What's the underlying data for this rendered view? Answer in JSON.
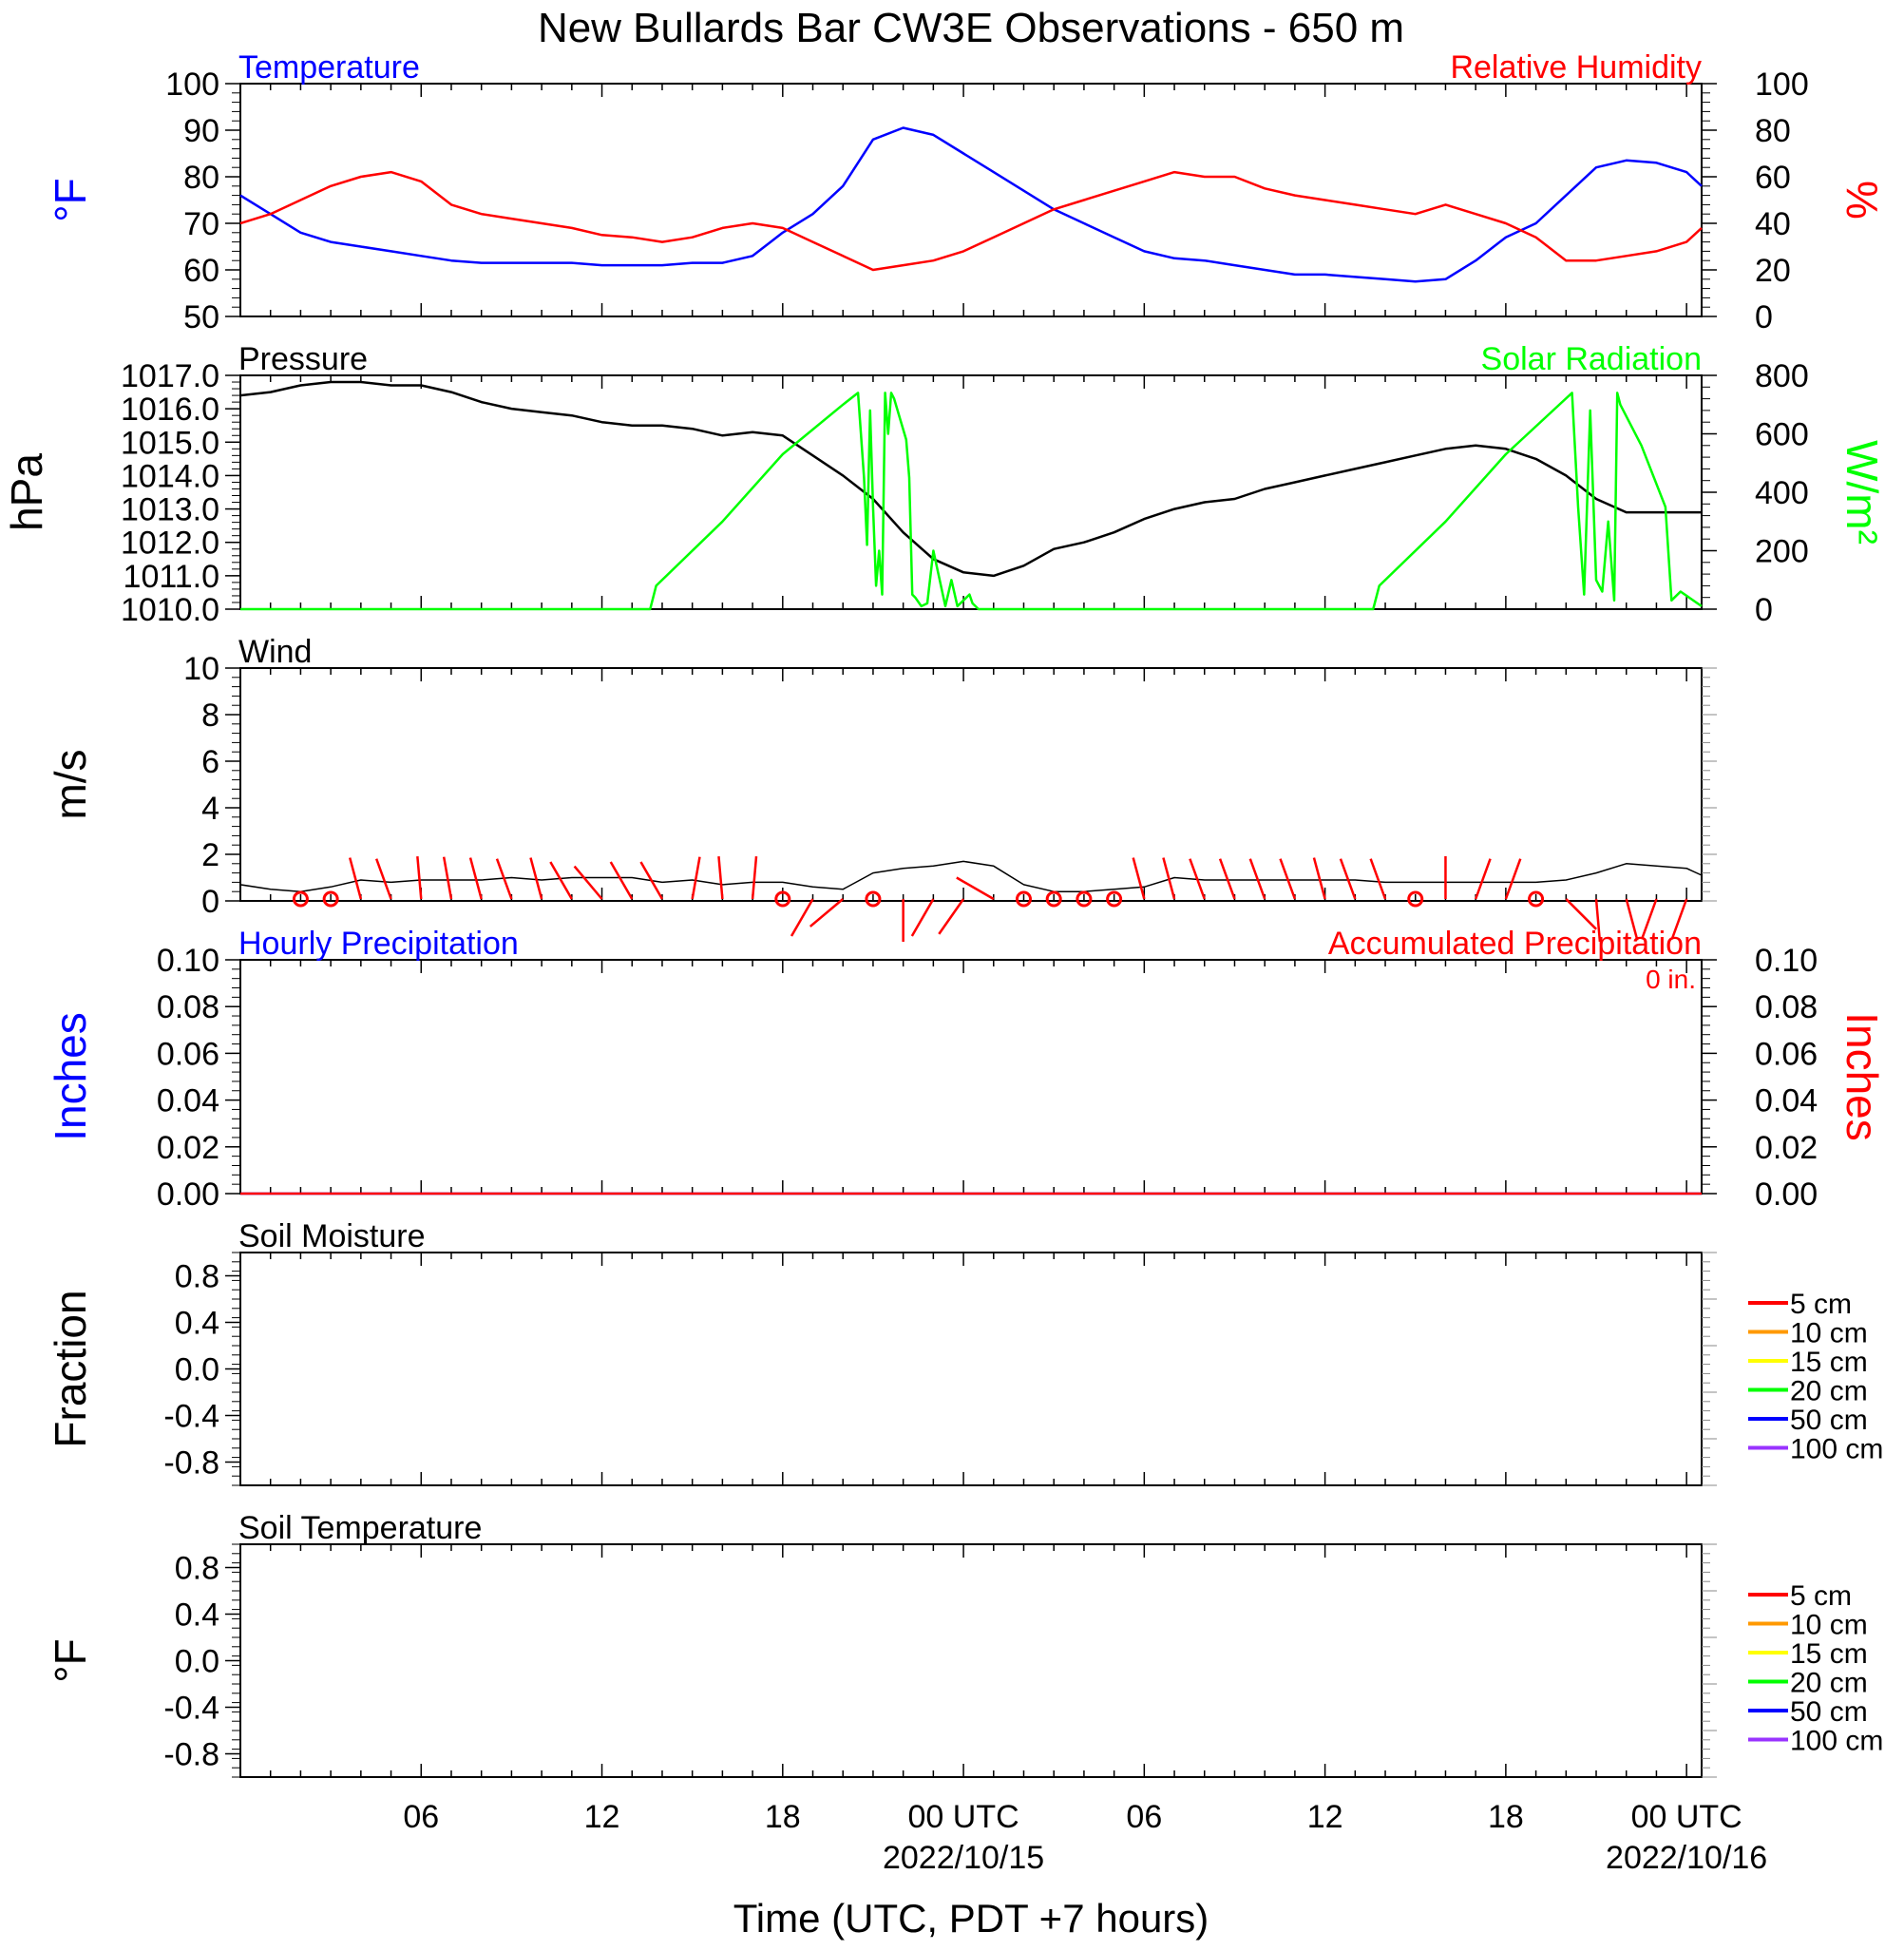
{
  "title": "New Bullards Bar CW3E Observations - 650 m",
  "xlabel": "Time (UTC, PDT +7 hours)",
  "x_axis": {
    "range_hours": [
      -24,
      24.5
    ],
    "ticks": [
      {
        "hour": -18,
        "label": "06",
        "date": ""
      },
      {
        "hour": -12,
        "label": "12",
        "date": ""
      },
      {
        "hour": -6,
        "label": "18",
        "date": ""
      },
      {
        "hour": 0,
        "label": "00 UTC",
        "date": "2022/10/15"
      },
      {
        "hour": 6,
        "label": "06",
        "date": ""
      },
      {
        "hour": 12,
        "label": "12",
        "date": ""
      },
      {
        "hour": 18,
        "label": "18",
        "date": ""
      },
      {
        "hour": 24,
        "label": "00 UTC",
        "date": "2022/10/16"
      }
    ]
  },
  "colors": {
    "temperature": "#0000ff",
    "humidity": "#ff0000",
    "pressure": "#000000",
    "solar": "#00ff00",
    "wind": "#000000",
    "barb": "#ff0000",
    "precip_hourly": "#0000ff",
    "precip_accum": "#ff0000"
  },
  "chart_data": [
    {
      "type": "line",
      "panel": "temperature-humidity",
      "left_title": "Temperature",
      "right_title": "Relative Humidity",
      "ylabel_left": "°F",
      "ylabel_right": "%",
      "ylim_left": [
        50,
        100
      ],
      "ylim_right": [
        0,
        100
      ],
      "yticks_left": [
        "50",
        "60",
        "70",
        "80",
        "90",
        "100"
      ],
      "yticks_right": [
        "0",
        "20",
        "40",
        "60",
        "80",
        "100"
      ],
      "series": [
        {
          "name": "Temperature",
          "axis": "left",
          "x": [
            -24,
            -23,
            -22,
            -21,
            -20,
            -19,
            -18,
            -17,
            -16,
            -15,
            -14,
            -13,
            -12,
            -11,
            -10,
            -9,
            -8,
            -7,
            -6,
            -5,
            -4,
            -3,
            -2,
            -1,
            0,
            1,
            2,
            3,
            4,
            5,
            6,
            7,
            8,
            9,
            10,
            11,
            12,
            13,
            14,
            15,
            16,
            17,
            18,
            19,
            20,
            21,
            22,
            23,
            24,
            24.5
          ],
          "y": [
            76,
            72,
            68,
            66,
            65,
            64,
            63,
            62,
            61.5,
            61.5,
            61.5,
            61.5,
            61,
            61,
            61,
            61.5,
            61.5,
            63,
            68,
            72,
            78,
            88,
            90.5,
            89,
            85,
            81,
            77,
            73,
            70,
            67,
            64,
            62.5,
            62,
            61,
            60,
            59,
            59,
            58.5,
            58,
            57.5,
            58,
            62,
            67,
            70,
            76,
            82,
            83.5,
            83,
            81,
            78
          ]
        },
        {
          "name": "Relative Humidity",
          "axis": "right",
          "x": [
            -24,
            -23,
            -22,
            -21,
            -20,
            -19,
            -18,
            -17,
            -16,
            -15,
            -14,
            -13,
            -12,
            -11,
            -10,
            -9,
            -8,
            -7,
            -6,
            -5,
            -4,
            -3,
            -2,
            -1,
            0,
            1,
            2,
            3,
            4,
            5,
            6,
            7,
            8,
            9,
            10,
            11,
            12,
            13,
            14,
            15,
            16,
            17,
            18,
            19,
            20,
            21,
            22,
            23,
            24,
            24.5
          ],
          "y": [
            40,
            44,
            50,
            56,
            60,
            62,
            58,
            48,
            44,
            42,
            40,
            38,
            35,
            34,
            32,
            34,
            38,
            40,
            38,
            32,
            26,
            20,
            22,
            24,
            28,
            34,
            40,
            46,
            50,
            54,
            58,
            62,
            60,
            60,
            55,
            52,
            50,
            48,
            46,
            44,
            48,
            44,
            40,
            34,
            24,
            24,
            26,
            28,
            32,
            38
          ]
        }
      ]
    },
    {
      "type": "line",
      "panel": "pressure-solar",
      "left_title": "Pressure",
      "right_title": "Solar Radiation",
      "ylabel_left": "hPa",
      "ylabel_right": "W/m²",
      "ylim_left": [
        1010,
        1017
      ],
      "ylim_right": [
        0,
        800
      ],
      "yticks_left": [
        "1010.0",
        "1011.0",
        "1012.0",
        "1013.0",
        "1014.0",
        "1015.0",
        "1016.0",
        "1017.0"
      ],
      "yticks_right": [
        "0",
        "200",
        "400",
        "600",
        "800"
      ],
      "series": [
        {
          "name": "Pressure",
          "axis": "left",
          "x": [
            -24,
            -23,
            -22,
            -21,
            -20,
            -19,
            -18,
            -17,
            -16,
            -15,
            -14,
            -13,
            -12,
            -11,
            -10,
            -9,
            -8,
            -7,
            -6,
            -5,
            -4,
            -3,
            -2,
            -1,
            0,
            1,
            2,
            3,
            4,
            5,
            6,
            7,
            8,
            9,
            10,
            11,
            12,
            13,
            14,
            15,
            16,
            17,
            18,
            19,
            20,
            21,
            22,
            23,
            24,
            24.5
          ],
          "y": [
            1016.4,
            1016.5,
            1016.7,
            1016.8,
            1016.8,
            1016.7,
            1016.7,
            1016.5,
            1016.2,
            1016.0,
            1015.9,
            1015.8,
            1015.6,
            1015.5,
            1015.5,
            1015.4,
            1015.2,
            1015.3,
            1015.2,
            1014.6,
            1014.0,
            1013.3,
            1012.3,
            1011.5,
            1011.1,
            1011.0,
            1011.3,
            1011.8,
            1012.0,
            1012.3,
            1012.7,
            1013.0,
            1013.2,
            1013.3,
            1013.6,
            1013.8,
            1014.0,
            1014.2,
            1014.4,
            1014.6,
            1014.8,
            1014.9,
            1014.8,
            1014.5,
            1014.0,
            1013.3,
            1012.9,
            1012.9,
            1012.9,
            1012.9
          ]
        },
        {
          "name": "Solar Radiation",
          "axis": "right",
          "x": [
            -24,
            -10.4,
            -10.2,
            -8,
            -6,
            -4,
            -3.5,
            -3.3,
            -3.2,
            -3.1,
            -3.0,
            -2.9,
            -2.8,
            -2.7,
            -2.6,
            -2.5,
            -2.4,
            -2.3,
            -1.9,
            -1.8,
            -1.7,
            -1.6,
            -1.4,
            -1.2,
            -1,
            -0.6,
            -0.4,
            -0.2,
            0.2,
            0.3,
            0.5,
            1.4,
            13.6,
            13.8,
            16,
            18,
            20.2,
            20.4,
            20.6,
            20.8,
            21,
            21.2,
            21.4,
            21.6,
            21.7,
            21.8,
            22.5,
            23.3,
            23.5,
            23.8,
            24.5
          ],
          "y": [
            0,
            0,
            80,
            300,
            530,
            700,
            740,
            450,
            220,
            680,
            350,
            80,
            200,
            50,
            740,
            600,
            740,
            720,
            580,
            450,
            50,
            40,
            10,
            20,
            200,
            10,
            100,
            10,
            50,
            20,
            0,
            0,
            0,
            80,
            300,
            530,
            740,
            350,
            50,
            680,
            100,
            60,
            300,
            30,
            740,
            700,
            560,
            350,
            30,
            60,
            10
          ]
        }
      ]
    },
    {
      "type": "line",
      "panel": "wind",
      "left_title": "Wind",
      "ylabel_left": "m/s",
      "ylim_left": [
        0,
        10
      ],
      "yticks_left": [
        "0",
        "2",
        "4",
        "6",
        "8",
        "10"
      ],
      "series": [
        {
          "name": "Wind",
          "axis": "left",
          "x": [
            -24,
            -23,
            -22,
            -21,
            -20,
            -19,
            -18,
            -17,
            -16,
            -15,
            -14,
            -13,
            -12,
            -11,
            -10,
            -9,
            -8,
            -7,
            -6,
            -5,
            -4,
            -3,
            -2,
            -1,
            0,
            1,
            2,
            3,
            4,
            5,
            6,
            7,
            8,
            9,
            10,
            11,
            12,
            13,
            14,
            15,
            16,
            17,
            18,
            19,
            20,
            21,
            22,
            23,
            24,
            24.5
          ],
          "y": [
            0.7,
            0.5,
            0.4,
            0.6,
            0.9,
            0.8,
            0.9,
            0.9,
            0.9,
            1.0,
            0.9,
            1.0,
            1.0,
            1.0,
            0.8,
            0.9,
            0.7,
            0.8,
            0.8,
            0.6,
            0.5,
            1.2,
            1.4,
            1.5,
            1.7,
            1.5,
            0.7,
            0.4,
            0.4,
            0.5,
            0.6,
            1.0,
            0.9,
            0.9,
            0.9,
            0.9,
            0.9,
            0.9,
            0.8,
            0.8,
            0.8,
            0.8,
            0.8,
            0.8,
            0.9,
            1.2,
            1.6,
            1.5,
            1.4,
            1.1
          ]
        }
      ]
    },
    {
      "type": "line",
      "panel": "precipitation",
      "left_title": "Hourly Precipitation",
      "right_title": "Accumulated Precipitation",
      "accumulated_total": "0 in.",
      "ylabel_left": "Inches",
      "ylabel_right": "Inches",
      "ylim_left": [
        0,
        0.1
      ],
      "ylim_right": [
        0,
        0.1
      ],
      "yticks_left": [
        "0.00",
        "0.02",
        "0.04",
        "0.06",
        "0.08",
        "0.10"
      ],
      "yticks_right": [
        "0.00",
        "0.02",
        "0.04",
        "0.06",
        "0.08",
        "0.10"
      ],
      "series": [
        {
          "name": "Hourly Precipitation",
          "axis": "left",
          "x": [
            -24,
            24.5
          ],
          "y": [
            0,
            0
          ]
        },
        {
          "name": "Accumulated Precipitation",
          "axis": "right",
          "x": [
            -24,
            24.5
          ],
          "y": [
            0,
            0
          ]
        }
      ]
    },
    {
      "type": "line",
      "panel": "soil-moisture",
      "left_title": "Soil Moisture",
      "ylabel_left": "Fraction",
      "ylim_left": [
        -1,
        1
      ],
      "yticks_left": [
        "-0.8",
        "-0.4",
        "0.0",
        "0.4",
        "0.8"
      ],
      "legend": [
        {
          "label": "5 cm",
          "color": "#ff0000"
        },
        {
          "label": "10 cm",
          "color": "#ff9900"
        },
        {
          "label": "15 cm",
          "color": "#ffff00"
        },
        {
          "label": "20 cm",
          "color": "#00ff00"
        },
        {
          "label": "50 cm",
          "color": "#0000ff"
        },
        {
          "label": "100 cm",
          "color": "#9933ff"
        }
      ],
      "series": []
    },
    {
      "type": "line",
      "panel": "soil-temperature",
      "left_title": "Soil Temperature",
      "ylabel_left": "°F",
      "ylim_left": [
        -1,
        1
      ],
      "yticks_left": [
        "-0.8",
        "-0.4",
        "0.0",
        "0.4",
        "0.8"
      ],
      "legend": [
        {
          "label": "5 cm",
          "color": "#ff0000"
        },
        {
          "label": "10 cm",
          "color": "#ff9900"
        },
        {
          "label": "15 cm",
          "color": "#ffff00"
        },
        {
          "label": "20 cm",
          "color": "#00ff00"
        },
        {
          "label": "50 cm",
          "color": "#0000ff"
        },
        {
          "label": "100 cm",
          "color": "#9933ff"
        }
      ],
      "series": []
    }
  ],
  "wind_barbs": {
    "flags": [
      {
        "hour": -22,
        "calm": true
      },
      {
        "hour": -21,
        "calm": true
      },
      {
        "hour": -20,
        "dir": 345
      },
      {
        "hour": -19,
        "dir": 340
      },
      {
        "hour": -18,
        "dir": 355
      },
      {
        "hour": -17,
        "dir": 350
      },
      {
        "hour": -16,
        "dir": 345
      },
      {
        "hour": -15,
        "dir": 340
      },
      {
        "hour": -14,
        "dir": 345
      },
      {
        "hour": -13,
        "dir": 330
      },
      {
        "hour": -12,
        "dir": 320
      },
      {
        "hour": -11,
        "dir": 330
      },
      {
        "hour": -10,
        "dir": 330
      },
      {
        "hour": -9,
        "dir": 10
      },
      {
        "hour": -8,
        "dir": 355
      },
      {
        "hour": -7,
        "dir": 5
      },
      {
        "hour": -6,
        "calm": true
      },
      {
        "hour": -5,
        "dir": 210
      },
      {
        "hour": -4,
        "dir": 230
      },
      {
        "hour": -3,
        "calm": true
      },
      {
        "hour": -2,
        "dir": 180
      },
      {
        "hour": -1,
        "dir": 210
      },
      {
        "hour": 0,
        "dir": 215
      },
      {
        "hour": 1,
        "dir": 300
      },
      {
        "hour": 2,
        "calm": true
      },
      {
        "hour": 3,
        "calm": true
      },
      {
        "hour": 4,
        "calm": true
      },
      {
        "hour": 5,
        "calm": true
      },
      {
        "hour": 6,
        "dir": 345
      },
      {
        "hour": 7,
        "dir": 345
      },
      {
        "hour": 8,
        "dir": 340
      },
      {
        "hour": 9,
        "dir": 340
      },
      {
        "hour": 10,
        "dir": 340
      },
      {
        "hour": 11,
        "dir": 340
      },
      {
        "hour": 12,
        "dir": 345
      },
      {
        "hour": 13,
        "dir": 340
      },
      {
        "hour": 14,
        "dir": 340
      },
      {
        "hour": 15,
        "calm": true
      },
      {
        "hour": 16,
        "dir": 0
      },
      {
        "hour": 17,
        "dir": 20
      },
      {
        "hour": 18,
        "dir": 20
      },
      {
        "hour": 19,
        "calm": true
      },
      {
        "hour": 20,
        "dir": 135
      },
      {
        "hour": 21,
        "dir": 175
      },
      {
        "hour": 22,
        "dir": 165
      },
      {
        "hour": 23,
        "dir": 200
      },
      {
        "hour": 24,
        "dir": 200
      }
    ]
  }
}
